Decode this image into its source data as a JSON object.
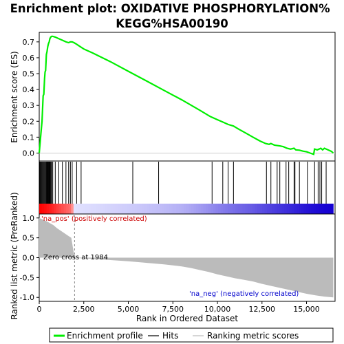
{
  "chart_data": {
    "type": "line",
    "title": "Enrichment plot: OXIDATIVE PHOSPHORYLATION%\nKEGG%HSA00190",
    "xlabel": "Rank in Ordered Dataset",
    "top_ylabel": "Enrichment score (ES)",
    "bottom_ylabel": "Ranked list metric (PreRanked)",
    "xlim": [
      0,
      16600
    ],
    "top_ylim": [
      -0.05,
      0.76
    ],
    "bottom_ylim": [
      -1.1,
      1.1
    ],
    "x_ticks": [
      0,
      2500,
      5000,
      7500,
      10000,
      12500,
      15000
    ],
    "x_tick_labels": [
      "0",
      "2,500",
      "5,000",
      "7,500",
      "10,000",
      "12,500",
      "15,000"
    ],
    "top_y_ticks": [
      0.0,
      0.1,
      0.2,
      0.3,
      0.4,
      0.5,
      0.6,
      0.7
    ],
    "top_y_tick_labels": [
      "0.0",
      "0.1",
      "0.2",
      "0.3",
      "0.4",
      "0.5",
      "0.6",
      "0.7"
    ],
    "bottom_y_ticks": [
      1.0,
      0.5,
      0.0,
      -0.5,
      -1.0
    ],
    "bottom_y_tick_labels": [
      "1.0",
      "0.5",
      "0.0",
      "-0.5",
      "-1.0"
    ],
    "zero_cross": 1984,
    "annotations": {
      "pos": "'na_pos' (positively correlated)",
      "neg": "'na_neg' (negatively correlated)",
      "zero": "Zero cross at 1984"
    },
    "legend": [
      "Enrichment profile",
      "Hits",
      "Ranking metric scores"
    ],
    "series": [
      {
        "name": "Enrichment profile",
        "color": "#00ee00",
        "x": [
          0,
          60,
          110,
          160,
          220,
          260,
          300,
          330,
          360,
          400,
          440,
          480,
          520,
          560,
          600,
          650,
          700,
          760,
          900,
          1100,
          1300,
          1500,
          1650,
          1750,
          1850,
          1950,
          2100,
          2300,
          2500,
          3000,
          4000,
          5000,
          6000,
          7000,
          8000,
          9000,
          9600,
          10000,
          10300,
          10600,
          10900,
          11200,
          11600,
          12000,
          12400,
          12700,
          12900,
          13000,
          13200,
          13500,
          13700,
          13900,
          14100,
          14300,
          14400,
          14600,
          14800,
          15000,
          15200,
          15400,
          15450,
          15600,
          15700,
          15800,
          15900,
          16000,
          16200,
          16400,
          16500
        ],
        "y": [
          0.0,
          0.08,
          0.14,
          0.2,
          0.36,
          0.37,
          0.47,
          0.51,
          0.52,
          0.62,
          0.64,
          0.67,
          0.69,
          0.7,
          0.72,
          0.73,
          0.735,
          0.735,
          0.73,
          0.72,
          0.71,
          0.7,
          0.695,
          0.7,
          0.7,
          0.695,
          0.685,
          0.67,
          0.655,
          0.63,
          0.575,
          0.515,
          0.455,
          0.395,
          0.335,
          0.27,
          0.23,
          0.21,
          0.195,
          0.18,
          0.17,
          0.15,
          0.125,
          0.1,
          0.075,
          0.06,
          0.055,
          0.06,
          0.05,
          0.045,
          0.04,
          0.03,
          0.025,
          0.03,
          0.02,
          0.018,
          0.012,
          0.008,
          0.0,
          -0.008,
          0.025,
          0.02,
          0.025,
          0.03,
          0.02,
          0.03,
          0.02,
          0.01,
          0.0
        ]
      },
      {
        "name": "Ranking metric scores",
        "color": "#bbbbbb",
        "x": [
          0,
          50,
          200,
          400,
          600,
          800,
          1000,
          1200,
          1400,
          1600,
          1800,
          1984,
          2200,
          3000,
          4000,
          5000,
          6000,
          7000,
          8000,
          8500,
          9000,
          9500,
          10000,
          10500,
          11000,
          11500,
          12000,
          12500,
          13000,
          13500,
          14000,
          14500,
          15000,
          15500,
          16000,
          16500
        ],
        "y": [
          1.0,
          0.99,
          0.96,
          0.92,
          0.87,
          0.82,
          0.74,
          0.68,
          0.62,
          0.56,
          0.5,
          0.0,
          -0.01,
          -0.03,
          -0.06,
          -0.09,
          -0.13,
          -0.17,
          -0.22,
          -0.26,
          -0.31,
          -0.36,
          -0.42,
          -0.47,
          -0.52,
          -0.56,
          -0.6,
          -0.66,
          -0.71,
          -0.76,
          -0.81,
          -0.86,
          -0.91,
          -0.95,
          -0.98,
          -1.0
        ]
      }
    ],
    "hits": [
      20,
      60,
      100,
      140,
      180,
      220,
      260,
      300,
      340,
      380,
      410,
      440,
      470,
      500,
      530,
      560,
      590,
      620,
      660,
      700,
      760,
      900,
      1100,
      1300,
      1500,
      1650,
      1750,
      1850,
      2100,
      2350,
      5250,
      6700,
      9700,
      10300,
      10600,
      10900,
      12750,
      13000,
      13350,
      13500,
      13850,
      14000,
      14300,
      14350,
      14600,
      15050,
      15450,
      15650,
      15750,
      15850,
      16100
    ]
  }
}
